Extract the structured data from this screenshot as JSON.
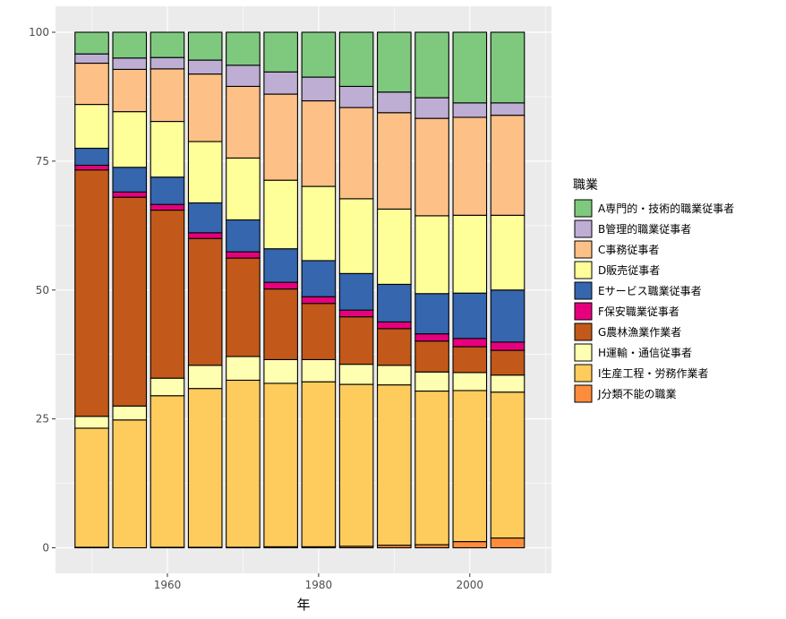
{
  "chart_data": {
    "type": "bar",
    "stacked": true,
    "xlabel": "年",
    "ylabel": "",
    "ylim": [
      0,
      100
    ],
    "yticks": [
      0,
      25,
      50,
      75,
      100
    ],
    "xticks": [
      1960,
      1980,
      2000
    ],
    "xlim": [
      1945.2,
      2010.8
    ],
    "categories": [
      1950,
      1955,
      1960,
      1965,
      1970,
      1975,
      1980,
      1985,
      1990,
      1995,
      2000,
      2005
    ],
    "grid": true,
    "legend_position": "right",
    "legend_title": "職業",
    "series": [
      {
        "name": "J分類不能の職業",
        "color": "#fd8d3c",
        "values": [
          0.1,
          0.0,
          0.1,
          0.1,
          0.1,
          0.2,
          0.2,
          0.3,
          0.5,
          0.6,
          1.2,
          1.9
        ]
      },
      {
        "name": "I生産工程・労務作業者",
        "color": "#fecc5c",
        "values": [
          23.1,
          24.8,
          29.4,
          30.8,
          32.4,
          31.7,
          32.0,
          31.4,
          31.1,
          29.8,
          29.3,
          28.3
        ]
      },
      {
        "name": "H運輸・通信従事者",
        "color": "#ffffb2",
        "values": [
          2.3,
          2.7,
          3.4,
          4.5,
          4.6,
          4.6,
          4.3,
          3.9,
          3.8,
          3.7,
          3.5,
          3.3
        ]
      },
      {
        "name": "G農林漁業作業者",
        "color": "#c2591a",
        "values": [
          47.8,
          40.5,
          32.6,
          24.6,
          19.1,
          13.7,
          10.9,
          9.2,
          7.1,
          6.0,
          5.0,
          4.8
        ]
      },
      {
        "name": "F保安職業従事者",
        "color": "#e7007d",
        "values": [
          0.9,
          1.0,
          1.1,
          1.1,
          1.2,
          1.3,
          1.3,
          1.3,
          1.3,
          1.4,
          1.6,
          1.6
        ]
      },
      {
        "name": "Eサービス職業従事者",
        "color": "#3566ae",
        "values": [
          3.3,
          4.8,
          5.3,
          5.8,
          6.2,
          6.5,
          7.0,
          7.1,
          7.3,
          7.8,
          8.8,
          10.1
        ]
      },
      {
        "name": "D販売従事者",
        "color": "#ffff99",
        "values": [
          8.5,
          10.8,
          10.8,
          11.9,
          12.0,
          13.3,
          14.4,
          14.5,
          14.6,
          15.1,
          15.1,
          14.5
        ]
      },
      {
        "name": "C事務従事者",
        "color": "#fdc086",
        "values": [
          8.0,
          8.2,
          10.2,
          13.1,
          13.9,
          16.7,
          16.6,
          17.7,
          18.7,
          18.9,
          19.0,
          19.4
        ]
      },
      {
        "name": "B管理的職業従事者",
        "color": "#beaed4",
        "values": [
          1.8,
          2.2,
          2.2,
          2.7,
          4.1,
          4.3,
          4.6,
          4.1,
          4.0,
          4.0,
          2.8,
          2.4
        ]
      },
      {
        "name": "A専門的・技術的職業従事者",
        "color": "#7fc97f",
        "values": [
          4.2,
          5.0,
          4.9,
          5.4,
          6.4,
          7.7,
          8.7,
          10.5,
          11.6,
          12.7,
          13.7,
          13.7
        ]
      }
    ]
  }
}
